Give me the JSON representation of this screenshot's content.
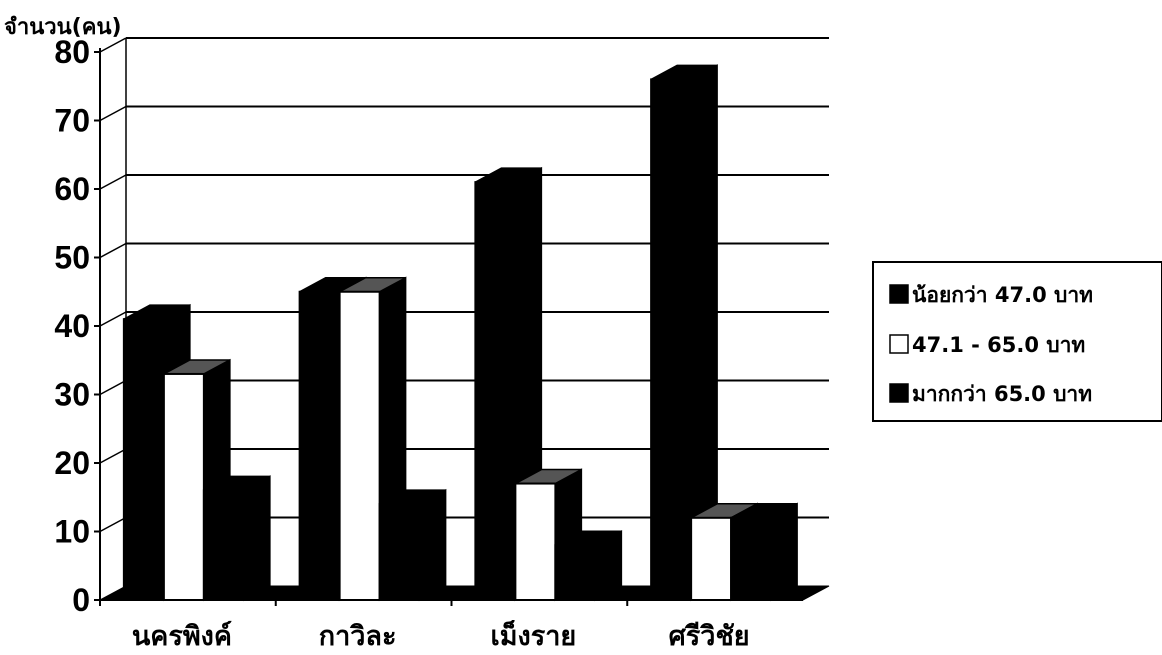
{
  "chart_data": {
    "type": "bar",
    "ylabel": "จำนวน(คน)",
    "ylim": [
      0,
      80
    ],
    "yticks": [
      0,
      10,
      20,
      30,
      40,
      50,
      60,
      70,
      80
    ],
    "categories": [
      "นครพิงค์",
      "กาวิละ",
      "เม็งราย",
      "ศรีวิชัย"
    ],
    "series": [
      {
        "name": "น้อยกว่า 47.0 บาท",
        "values": [
          41,
          45,
          61,
          76
        ],
        "color": "#000000"
      },
      {
        "name": "47.1 - 65.0 บาท",
        "values": [
          33,
          45,
          17,
          12
        ],
        "color": "#ffffff"
      },
      {
        "name": "มากกว่า 65.0 บาท",
        "values": [
          16,
          14,
          8,
          12
        ],
        "color": "#000000"
      }
    ],
    "grid": true,
    "legend_position": "right",
    "style": "3d-column"
  }
}
